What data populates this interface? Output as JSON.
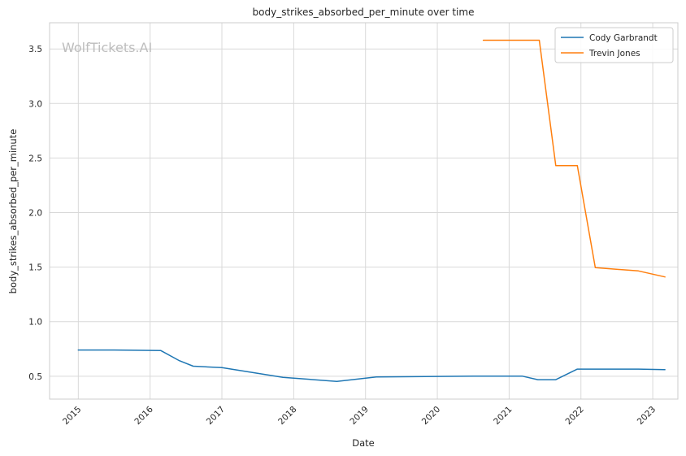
{
  "chart_data": {
    "type": "line",
    "title": "body_strikes_absorbed_per_minute over time",
    "xlabel": "Date",
    "ylabel": "body_strikes_absorbed_per_minute",
    "x_ticks": [
      "2015",
      "2016",
      "2017",
      "2018",
      "2019",
      "2020",
      "2021",
      "2022",
      "2023"
    ],
    "y_ticks": [
      "0.5",
      "1.0",
      "1.5",
      "2.0",
      "2.5",
      "3.0",
      "3.5"
    ],
    "xlim": [
      2014.6,
      2023.35
    ],
    "ylim": [
      0.29,
      3.74
    ],
    "grid": true,
    "legend_position": "top-right",
    "watermark": "WolfTickets.AI",
    "series": [
      {
        "name": "Cody Garbrandt",
        "color": "#1f77b4",
        "points": [
          [
            2015.0,
            0.74
          ],
          [
            2015.5,
            0.74
          ],
          [
            2016.15,
            0.735
          ],
          [
            2016.4,
            0.645
          ],
          [
            2016.6,
            0.592
          ],
          [
            2017.0,
            0.578
          ],
          [
            2017.85,
            0.49
          ],
          [
            2018.6,
            0.452
          ],
          [
            2019.15,
            0.493
          ],
          [
            2020.5,
            0.501
          ],
          [
            2021.18,
            0.501
          ],
          [
            2021.4,
            0.468
          ],
          [
            2021.65,
            0.468
          ],
          [
            2021.95,
            0.565
          ],
          [
            2022.8,
            0.565
          ],
          [
            2023.17,
            0.56
          ]
        ]
      },
      {
        "name": "Trevin Jones",
        "color": "#ff7f0e",
        "points": [
          [
            2020.64,
            3.58
          ],
          [
            2021.42,
            3.58
          ],
          [
            2021.65,
            2.43
          ],
          [
            2021.95,
            2.43
          ],
          [
            2022.2,
            1.495
          ],
          [
            2022.8,
            1.465
          ],
          [
            2023.17,
            1.41
          ]
        ]
      }
    ]
  }
}
